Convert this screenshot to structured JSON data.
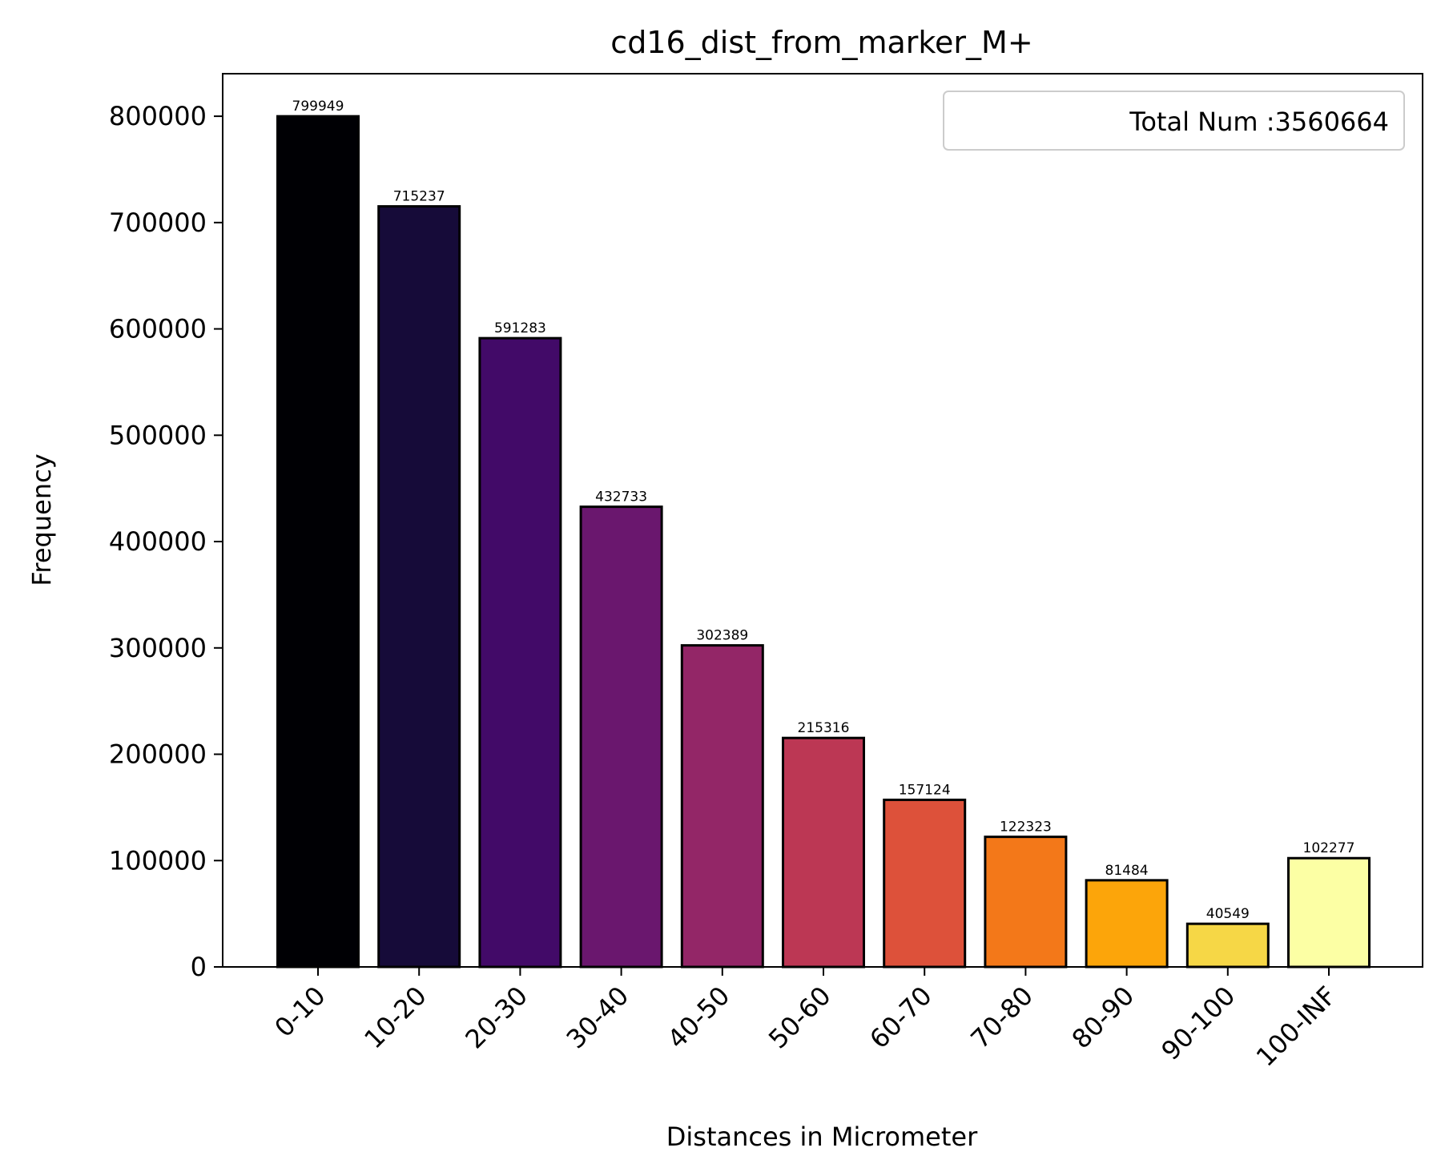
{
  "chart_data": {
    "type": "bar",
    "title": "cd16_dist_from_marker_M+",
    "xlabel": "Distances in Micrometer",
    "ylabel": "Frequency",
    "categories": [
      "0-10",
      "10-20",
      "20-30",
      "30-40",
      "40-50",
      "50-60",
      "60-70",
      "70-80",
      "80-90",
      "90-100",
      "100-INF"
    ],
    "values": [
      799949,
      715237,
      591283,
      432733,
      302389,
      215316,
      157124,
      122323,
      81484,
      40549,
      102277
    ],
    "colors": [
      "#000004",
      "#160b39",
      "#420a68",
      "#6a176e",
      "#932667",
      "#bc3754",
      "#dd513a",
      "#f37819",
      "#fca50a",
      "#f6d746",
      "#fcffa4"
    ],
    "bar_edge_color": "#000000",
    "ylim": [
      0,
      840000
    ],
    "yticks": [
      0,
      100000,
      200000,
      300000,
      400000,
      500000,
      600000,
      700000,
      800000
    ],
    "x_tick_rotation_deg": 45,
    "grid": false,
    "legend": {
      "placement": "top-right",
      "entries": [
        "Total Num :3560664"
      ]
    }
  }
}
